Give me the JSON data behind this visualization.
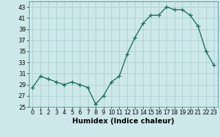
{
  "x": [
    0,
    1,
    2,
    3,
    4,
    5,
    6,
    7,
    8,
    9,
    10,
    11,
    12,
    13,
    14,
    15,
    16,
    17,
    18,
    19,
    20,
    21,
    22,
    23
  ],
  "y": [
    28.5,
    30.5,
    30.0,
    29.5,
    29.0,
    29.5,
    29.0,
    28.5,
    25.5,
    27.0,
    29.5,
    30.5,
    34.5,
    37.5,
    40.0,
    41.5,
    41.5,
    43.0,
    42.5,
    42.5,
    41.5,
    39.5,
    35.0,
    32.5
  ],
  "line_color": "#1a6b5a",
  "marker": "+",
  "markersize": 4,
  "linewidth": 1.0,
  "xlabel": "Humidex (Indice chaleur)",
  "xlim": [
    -0.5,
    23.5
  ],
  "ylim": [
    25,
    44
  ],
  "yticks": [
    25,
    27,
    29,
    31,
    33,
    35,
    37,
    39,
    41,
    43
  ],
  "xtick_labels": [
    "0",
    "1",
    "2",
    "3",
    "4",
    "5",
    "6",
    "7",
    "8",
    "9",
    "10",
    "11",
    "12",
    "13",
    "14",
    "15",
    "16",
    "17",
    "18",
    "19",
    "20",
    "21",
    "22",
    "23"
  ],
  "bg_color": "#cde8eb",
  "grid_color": "#aacdd2",
  "label_fontsize": 7.5,
  "tick_fontsize": 6.0
}
